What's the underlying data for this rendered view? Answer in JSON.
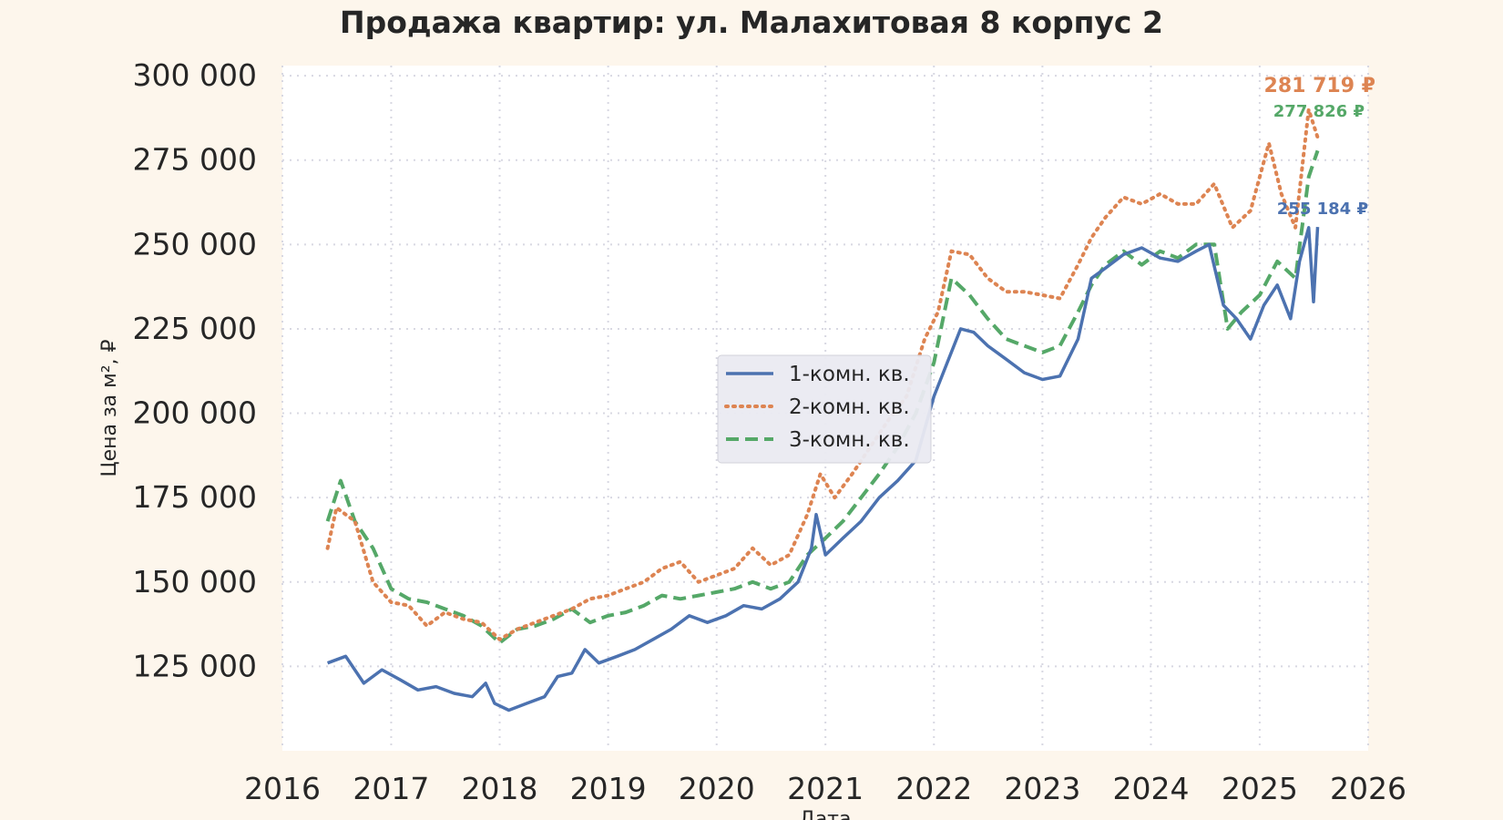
{
  "colors": {
    "background": "#fdf6ec",
    "plot_background": "#ffffff",
    "grid": "#d8d8e2",
    "series1": "#4c72b0",
    "series2": "#dd8452",
    "series3": "#55a868"
  },
  "chart_data": {
    "type": "line",
    "title": "Продажа квартир: ул. Малахитовая 8 корпус 2",
    "xlabel": "Дата",
    "ylabel": "Цена за м², ₽",
    "xlim": [
      "2016-01-01",
      "2026-01-01"
    ],
    "ylim": [
      100000,
      303000
    ],
    "x_ticks": [
      "2016",
      "2017",
      "2018",
      "2019",
      "2020",
      "2021",
      "2022",
      "2023",
      "2024",
      "2025",
      "2026"
    ],
    "y_ticks": [
      125000,
      150000,
      175000,
      200000,
      225000,
      250000,
      275000,
      300000
    ],
    "y_tick_labels": [
      "125 000",
      "150 000",
      "175 000",
      "200 000",
      "225 000",
      "250 000",
      "275 000",
      "300 000"
    ],
    "grid": true,
    "legend_position": "center",
    "series": [
      {
        "name": "1-комн. кв.",
        "style": "solid",
        "end_label": "255 184 ₽",
        "points": [
          [
            "2016-06-01",
            126000
          ],
          [
            "2016-08-01",
            128000
          ],
          [
            "2016-10-01",
            120000
          ],
          [
            "2016-12-01",
            124000
          ],
          [
            "2017-02-01",
            121000
          ],
          [
            "2017-04-01",
            118000
          ],
          [
            "2017-06-01",
            119000
          ],
          [
            "2017-08-01",
            117000
          ],
          [
            "2017-10-01",
            116000
          ],
          [
            "2017-11-15",
            120000
          ],
          [
            "2017-12-15",
            114000
          ],
          [
            "2018-02-01",
            112000
          ],
          [
            "2018-04-01",
            114000
          ],
          [
            "2018-06-01",
            116000
          ],
          [
            "2018-07-15",
            122000
          ],
          [
            "2018-09-01",
            123000
          ],
          [
            "2018-10-15",
            130000
          ],
          [
            "2018-12-01",
            126000
          ],
          [
            "2019-02-01",
            128000
          ],
          [
            "2019-04-01",
            130000
          ],
          [
            "2019-06-01",
            133000
          ],
          [
            "2019-08-01",
            136000
          ],
          [
            "2019-10-01",
            140000
          ],
          [
            "2019-12-01",
            138000
          ],
          [
            "2020-02-01",
            140000
          ],
          [
            "2020-04-01",
            143000
          ],
          [
            "2020-06-01",
            142000
          ],
          [
            "2020-08-01",
            145000
          ],
          [
            "2020-10-01",
            150000
          ],
          [
            "2020-11-15",
            160000
          ],
          [
            "2020-12-01",
            170000
          ],
          [
            "2021-01-01",
            158000
          ],
          [
            "2021-03-01",
            163000
          ],
          [
            "2021-05-01",
            168000
          ],
          [
            "2021-07-01",
            175000
          ],
          [
            "2021-09-01",
            180000
          ],
          [
            "2021-11-01",
            186000
          ],
          [
            "2022-01-01",
            205000
          ],
          [
            "2022-02-15",
            215000
          ],
          [
            "2022-04-01",
            225000
          ],
          [
            "2022-05-15",
            224000
          ],
          [
            "2022-07-01",
            220000
          ],
          [
            "2022-09-01",
            216000
          ],
          [
            "2022-11-01",
            212000
          ],
          [
            "2023-01-01",
            210000
          ],
          [
            "2023-03-01",
            211000
          ],
          [
            "2023-05-01",
            222000
          ],
          [
            "2023-06-15",
            240000
          ],
          [
            "2023-08-01",
            243000
          ],
          [
            "2023-10-01",
            247000
          ],
          [
            "2023-12-01",
            249000
          ],
          [
            "2024-02-01",
            246000
          ],
          [
            "2024-04-01",
            245000
          ],
          [
            "2024-06-01",
            248000
          ],
          [
            "2024-07-15",
            250000
          ],
          [
            "2024-09-01",
            232000
          ],
          [
            "2024-10-15",
            228000
          ],
          [
            "2024-12-01",
            222000
          ],
          [
            "2025-01-15",
            232000
          ],
          [
            "2025-03-01",
            238000
          ],
          [
            "2025-04-15",
            228000
          ],
          [
            "2025-05-15",
            245000
          ],
          [
            "2025-06-15",
            255000
          ],
          [
            "2025-07-01",
            233000
          ],
          [
            "2025-07-15",
            255184
          ]
        ]
      },
      {
        "name": "2-комн. кв.",
        "style": "dotted",
        "end_label": "281 719 ₽",
        "points": [
          [
            "2016-06-01",
            160000
          ],
          [
            "2016-07-01",
            172000
          ],
          [
            "2016-09-01",
            168000
          ],
          [
            "2016-11-01",
            150000
          ],
          [
            "2017-01-01",
            144000
          ],
          [
            "2017-03-01",
            143000
          ],
          [
            "2017-05-01",
            137000
          ],
          [
            "2017-07-01",
            141000
          ],
          [
            "2017-09-01",
            139000
          ],
          [
            "2017-11-01",
            138000
          ],
          [
            "2018-01-01",
            133000
          ],
          [
            "2018-03-01",
            136000
          ],
          [
            "2018-05-01",
            138000
          ],
          [
            "2018-07-01",
            140000
          ],
          [
            "2018-09-01",
            142000
          ],
          [
            "2018-11-01",
            145000
          ],
          [
            "2019-01-01",
            146000
          ],
          [
            "2019-03-01",
            148000
          ],
          [
            "2019-05-01",
            150000
          ],
          [
            "2019-07-01",
            154000
          ],
          [
            "2019-09-01",
            156000
          ],
          [
            "2019-11-01",
            150000
          ],
          [
            "2020-01-01",
            152000
          ],
          [
            "2020-03-01",
            154000
          ],
          [
            "2020-05-01",
            160000
          ],
          [
            "2020-07-01",
            155000
          ],
          [
            "2020-09-01",
            158000
          ],
          [
            "2020-11-01",
            170000
          ],
          [
            "2020-12-15",
            182000
          ],
          [
            "2021-02-01",
            175000
          ],
          [
            "2021-04-01",
            182000
          ],
          [
            "2021-06-01",
            190000
          ],
          [
            "2021-08-01",
            198000
          ],
          [
            "2021-10-01",
            205000
          ],
          [
            "2021-12-01",
            222000
          ],
          [
            "2022-01-15",
            230000
          ],
          [
            "2022-03-01",
            248000
          ],
          [
            "2022-05-01",
            247000
          ],
          [
            "2022-07-01",
            240000
          ],
          [
            "2022-09-01",
            236000
          ],
          [
            "2022-11-01",
            236000
          ],
          [
            "2023-01-01",
            235000
          ],
          [
            "2023-03-01",
            234000
          ],
          [
            "2023-05-01",
            244000
          ],
          [
            "2023-06-15",
            252000
          ],
          [
            "2023-08-01",
            258000
          ],
          [
            "2023-10-01",
            264000
          ],
          [
            "2023-12-01",
            262000
          ],
          [
            "2024-02-01",
            265000
          ],
          [
            "2024-04-01",
            262000
          ],
          [
            "2024-06-01",
            262000
          ],
          [
            "2024-08-01",
            268000
          ],
          [
            "2024-10-01",
            255000
          ],
          [
            "2024-12-01",
            260000
          ],
          [
            "2025-02-01",
            280000
          ],
          [
            "2025-03-15",
            265000
          ],
          [
            "2025-05-01",
            255000
          ],
          [
            "2025-06-15",
            290000
          ],
          [
            "2025-07-15",
            281719
          ]
        ]
      },
      {
        "name": "3-комн. кв.",
        "style": "dashed",
        "end_label": "277 826 ₽",
        "points": [
          [
            "2016-06-01",
            168000
          ],
          [
            "2016-07-15",
            180000
          ],
          [
            "2016-09-01",
            168000
          ],
          [
            "2016-11-01",
            160000
          ],
          [
            "2017-01-01",
            148000
          ],
          [
            "2017-03-01",
            145000
          ],
          [
            "2017-05-01",
            144000
          ],
          [
            "2017-07-01",
            142000
          ],
          [
            "2017-09-01",
            140000
          ],
          [
            "2017-11-01",
            137000
          ],
          [
            "2018-01-01",
            132000
          ],
          [
            "2018-03-01",
            136000
          ],
          [
            "2018-05-01",
            137000
          ],
          [
            "2018-07-01",
            139000
          ],
          [
            "2018-09-01",
            142000
          ],
          [
            "2018-11-01",
            138000
          ],
          [
            "2019-01-01",
            140000
          ],
          [
            "2019-03-01",
            141000
          ],
          [
            "2019-05-01",
            143000
          ],
          [
            "2019-07-01",
            146000
          ],
          [
            "2019-09-01",
            145000
          ],
          [
            "2019-11-01",
            146000
          ],
          [
            "2020-01-01",
            147000
          ],
          [
            "2020-03-01",
            148000
          ],
          [
            "2020-05-01",
            150000
          ],
          [
            "2020-07-01",
            148000
          ],
          [
            "2020-09-01",
            150000
          ],
          [
            "2020-11-01",
            158000
          ],
          [
            "2021-01-01",
            163000
          ],
          [
            "2021-03-01",
            168000
          ],
          [
            "2021-05-01",
            175000
          ],
          [
            "2021-07-01",
            182000
          ],
          [
            "2021-09-01",
            190000
          ],
          [
            "2021-11-01",
            200000
          ],
          [
            "2022-01-01",
            215000
          ],
          [
            "2022-03-01",
            240000
          ],
          [
            "2022-05-01",
            235000
          ],
          [
            "2022-07-01",
            228000
          ],
          [
            "2022-09-01",
            222000
          ],
          [
            "2022-11-01",
            220000
          ],
          [
            "2023-01-01",
            218000
          ],
          [
            "2023-03-01",
            220000
          ],
          [
            "2023-05-01",
            230000
          ],
          [
            "2023-06-15",
            238000
          ],
          [
            "2023-08-01",
            244000
          ],
          [
            "2023-10-01",
            248000
          ],
          [
            "2023-12-01",
            244000
          ],
          [
            "2024-02-01",
            248000
          ],
          [
            "2024-04-01",
            246000
          ],
          [
            "2024-06-01",
            250000
          ],
          [
            "2024-08-01",
            250000
          ],
          [
            "2024-09-15",
            225000
          ],
          [
            "2024-11-01",
            230000
          ],
          [
            "2025-01-01",
            235000
          ],
          [
            "2025-03-01",
            245000
          ],
          [
            "2025-05-01",
            240000
          ],
          [
            "2025-06-15",
            270000
          ],
          [
            "2025-07-15",
            277826
          ]
        ]
      }
    ]
  }
}
